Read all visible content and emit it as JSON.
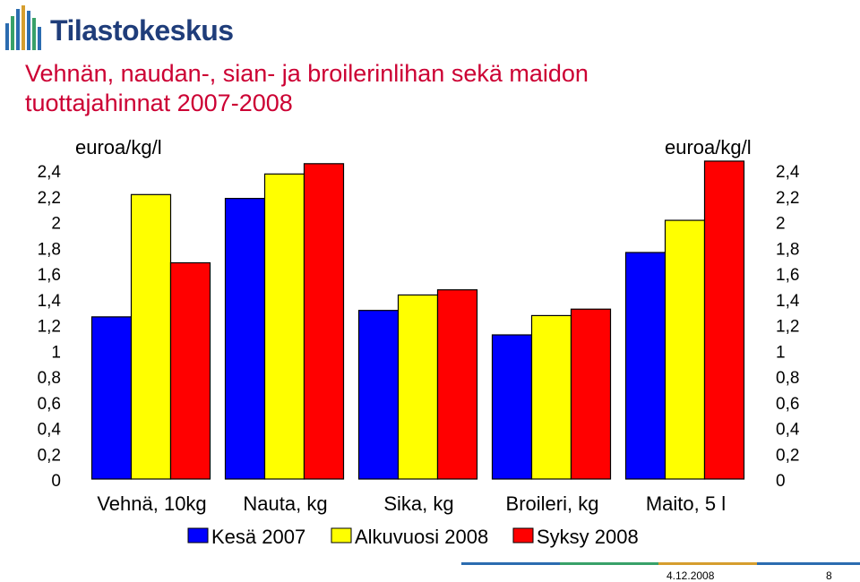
{
  "header": {
    "logo_text": "Tilastokeskus",
    "title_line1": "Vehnän, naudan-, sian- ja broilerinlihan sekä maidon",
    "title_line2": "tuottajahinnat 2007-2008"
  },
  "footer": {
    "date": "4.12.2008",
    "page": "8"
  },
  "chart_data": {
    "type": "bar",
    "title": "Vehnän, naudan-, sian- ja broilerinlihan sekä maidon tuottajahinnat 2007-2008",
    "ylabel_left": "euroa/kg/l",
    "ylabel_right": "euroa/kg/l",
    "ylim": [
      0,
      2.4
    ],
    "yticks": [
      "0",
      "0,2",
      "0,4",
      "0,6",
      "0,8",
      "1",
      "1,2",
      "1,4",
      "1,6",
      "1,8",
      "2",
      "2,2",
      "2,4"
    ],
    "categories": [
      "Vehnä, 10kg",
      "Nauta, kg",
      "Sika, kg",
      "Broileri, kg",
      "Maito, 5 l"
    ],
    "series": [
      {
        "name": "Kesä 2007",
        "color": "#0000ff",
        "values": [
          1.26,
          2.18,
          1.31,
          1.12,
          1.76
        ]
      },
      {
        "name": "Alkuvuosi 2008",
        "color": "#ffff00",
        "values": [
          2.21,
          2.37,
          1.43,
          1.27,
          2.01
        ]
      },
      {
        "name": "Syksy 2008",
        "color": "#ff0000",
        "values": [
          1.68,
          2.45,
          1.47,
          1.32,
          2.47
        ]
      }
    ],
    "grid": false,
    "legend_position": "bottom"
  }
}
